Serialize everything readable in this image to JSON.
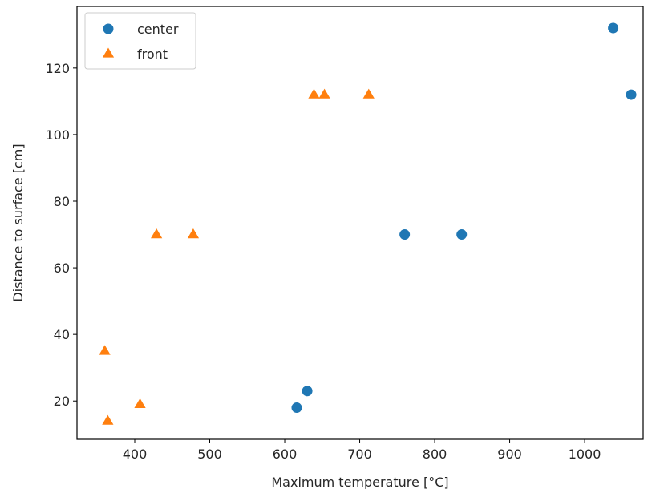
{
  "chart_data": {
    "type": "scatter",
    "xlabel": "Maximum temperature [°C]",
    "ylabel": "Distance to surface [cm]",
    "xlim": [
      323,
      1078
    ],
    "ylim": [
      8.5,
      138.5
    ],
    "xticks": [
      400,
      500,
      600,
      700,
      800,
      900,
      1000
    ],
    "yticks": [
      20,
      40,
      60,
      80,
      100,
      120
    ],
    "grid": false,
    "legend_placement": "top-left",
    "series": [
      {
        "name": "center",
        "marker": "circle",
        "color": "#1f77b4",
        "points": [
          {
            "x": 616,
            "y": 18
          },
          {
            "x": 630,
            "y": 23
          },
          {
            "x": 760,
            "y": 70
          },
          {
            "x": 836,
            "y": 70
          },
          {
            "x": 1038,
            "y": 132
          },
          {
            "x": 1062,
            "y": 112
          }
        ]
      },
      {
        "name": "front",
        "marker": "triangle",
        "color": "#ff7f0e",
        "points": [
          {
            "x": 360,
            "y": 35
          },
          {
            "x": 364,
            "y": 14
          },
          {
            "x": 407,
            "y": 19
          },
          {
            "x": 429,
            "y": 70
          },
          {
            "x": 478,
            "y": 70
          },
          {
            "x": 639,
            "y": 112
          },
          {
            "x": 653,
            "y": 112
          },
          {
            "x": 712,
            "y": 112
          }
        ]
      }
    ]
  }
}
